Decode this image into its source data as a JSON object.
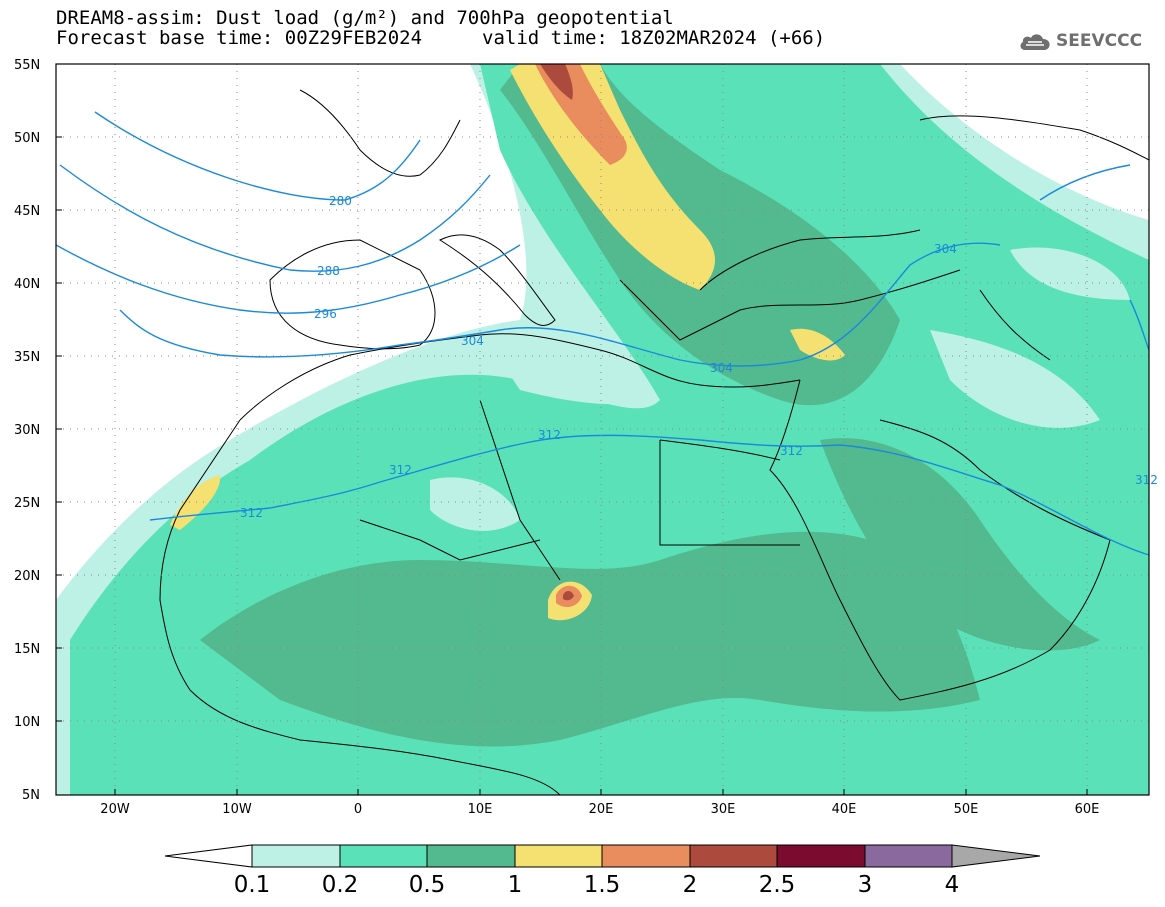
{
  "header": {
    "title_line1": "DREAM8-assim: Dust load (g/m²) and 700hPa geopotential",
    "title_line2": "Forecast base time: 00Z29FEB2024",
    "valid_time": "valid time: 18Z02MAR2024 (+66)",
    "logo_text": "SEEVCCC",
    "logo_icon": "cloud-icon"
  },
  "map": {
    "lat_labels": [
      "55N",
      "50N",
      "45N",
      "40N",
      "35N",
      "30N",
      "25N",
      "20N",
      "15N",
      "10N",
      "5N"
    ],
    "lon_labels": [
      "20W",
      "10W",
      "0",
      "10E",
      "20E",
      "30E",
      "40E",
      "50E",
      "60E"
    ],
    "contour_labels": [
      "280",
      "288",
      "296",
      "304",
      "304",
      "304",
      "312",
      "312",
      "312",
      "312",
      "312"
    ],
    "contour_color": "#1a8ad8"
  },
  "colorbar": {
    "tick_labels": [
      "0.1",
      "0.2",
      "0.5",
      "1",
      "1.5",
      "2",
      "2.5",
      "3",
      "4"
    ],
    "colors": [
      "#ffffff",
      "#bdf1e6",
      "#5be1b8",
      "#53b98f",
      "#f5e171",
      "#e98c5e",
      "#ad4a3e",
      "#7c0c2f",
      "#8a6a9e",
      "#a8a8a8"
    ]
  }
}
